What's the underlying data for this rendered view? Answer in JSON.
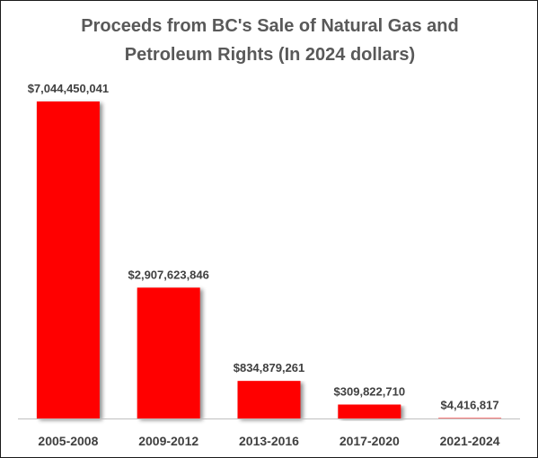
{
  "chart_data": {
    "type": "bar",
    "title_lines": [
      "Proceeds from BC's Sale of Natural Gas and",
      "Petroleum Rights (In 2024 dollars)"
    ],
    "categories": [
      "2005-2008",
      "2009-2012",
      "2013-2016",
      "2017-2020",
      "2021-2024"
    ],
    "values": [
      7044450041,
      2907623846,
      834879261,
      309822710,
      4416817
    ],
    "data_labels": [
      "$7,044,450,041",
      "$2,907,623,846",
      "$834,879,261",
      "$309,822,710",
      "$4,416,817"
    ],
    "bar_color": "#ff0000",
    "ylim": [
      0,
      7044450041
    ],
    "grid": false,
    "legend": "none"
  }
}
